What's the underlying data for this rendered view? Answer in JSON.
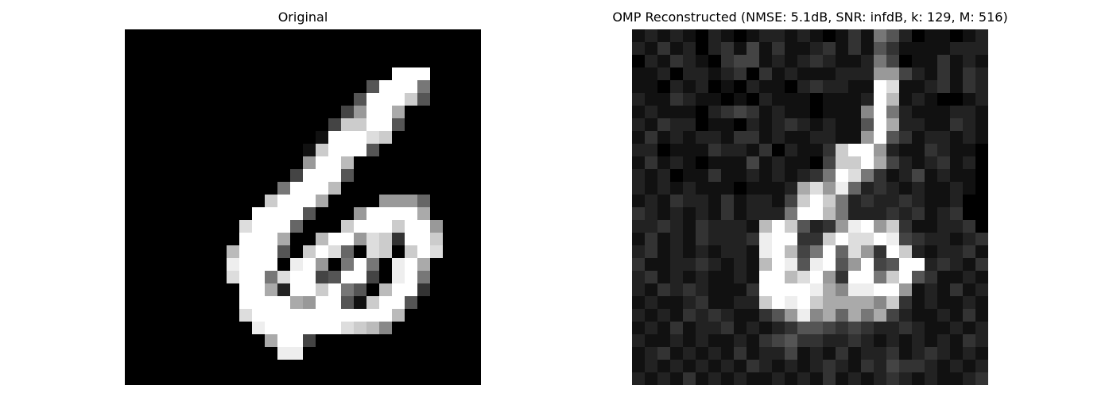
{
  "figure": {
    "panels": [
      {
        "title": "Original",
        "pixels": [
          "0000000000000000000000000000",
          "0000000000000000000000000000",
          "0000000000000000000000000000",
          "000000000000000000000fff0000",
          "00000000000000000005fff70000",
          "0000000000000000005fffc50000",
          "0000000000000000049ffa000000",
          "00000000000000004ccff5000000",
          "0000000000000001fffdc0000000",
          "000000000000001cfff50000000",
          "000000000000009ffb0000000000",
          "00000000000004fff50000000000",
          "0000000000007fffb0000000000",
          "00000000000cfffa000099960000",
          "0000000000ffff50009ffffa0000",
          "000000000dfff6000cfffcff9000",
          "000000000fffa00bff9dc3ffc000",
          "00000000bfff50cfd60dc0cfd000",
          "00000000efff0ef907f70efa0000",
          "00000000dff7dff45ff40ef70000",
          "000000000ffa2ffcf750bff30000",
          "000000000ffffa9ff51cff500000",
          "000000000dfffffffffffb000000",
          "0000000000effffffdcb80000000",
          "00000000000aff4000000000000",
          "000000000000ee00000000000000",
          "0000000000000000000000000000",
          "0000000000000000000000000000"
        ]
      },
      {
        "title": "OMP Reconstructed (NMSE: 5.1dB, SNR: infdB, k: 129, M: 516)",
        "pixels": [
          "1212102101221210131752011012",
          "2131202314131123131531111222",
          "0213210344121232112740113121",
          "1120221230312111222994213132",
          "1102120102110232211fd1123132",
          "2113211010211101112fb1210012",
          "1211102343121101118f72111221",
          "2132201102123212115fa2211321",
          "1312122133121122119f53122121",
          "2201113221302113cff92113211",
          "1312101114121104ccfa4212312",
          "2120113112121237fd731241211",
          "2121211101112ad9e6232121121",
          "1213221312214cfc7232232112",
          "3212121312227ffb7222323123",
          "2232132221bfc5239ef9c311223",
          "1312132223eff33cfddfe4322123",
          "2312121221efb47f6d93fc212231",
          "3112232121bfe5ef59f45ff23213",
          "2312121121ffbdf93ff7cf531121",
          "2132321113ffffea8eeff9121312",
          "1211231122cfefcaaaa8c3121121",
          "2121323211359e8a6a7a42112131",
          "1213122312123554343223211212",
          "2112121121345332232121212132",
          "1231212131224121312231232121",
          "1212121213212123213243321212",
          "2121312121121213121232121123"
        ]
      }
    ]
  }
}
